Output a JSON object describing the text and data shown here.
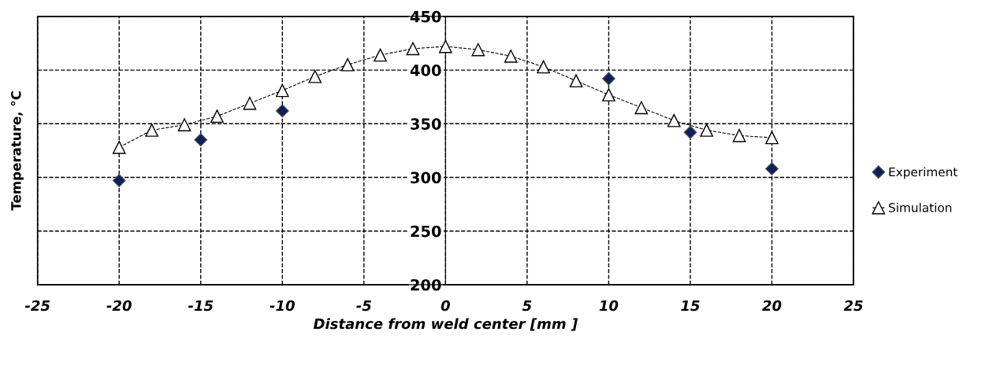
{
  "chart_data": {
    "type": "scatter",
    "xlabel": "Distance from weld center [mm ]",
    "ylabel": "Temperature, °C",
    "xlim": [
      -25,
      25
    ],
    "xticks": [
      -25,
      -20,
      -15,
      -10,
      -5,
      0,
      5,
      10,
      15,
      20,
      25
    ],
    "ylim": [
      200,
      450
    ],
    "yticks": [
      200,
      250,
      300,
      350,
      400,
      450
    ],
    "grid": true,
    "legend": "right",
    "series": [
      {
        "name": "Experiment",
        "marker": "diamond",
        "line_style": "none",
        "color": "#0d1f5c",
        "x": [
          -20,
          -15,
          -10,
          10,
          15,
          20
        ],
        "values": [
          297,
          335,
          362,
          392,
          342,
          308
        ]
      },
      {
        "name": "Simulation",
        "type": "line",
        "marker": "triangle",
        "line_style": "dashed",
        "color": "#000000",
        "x": [
          -20,
          -18,
          -16,
          -14,
          -12,
          -10,
          -8,
          -6,
          -4,
          -2,
          0,
          2,
          4,
          6,
          8,
          10,
          12,
          14,
          16,
          18,
          20
        ],
        "values": [
          328,
          344,
          349,
          357,
          369,
          381,
          394,
          405,
          414,
          420,
          422,
          419,
          413,
          403,
          390,
          377,
          365,
          353,
          344,
          339,
          337
        ]
      }
    ]
  }
}
